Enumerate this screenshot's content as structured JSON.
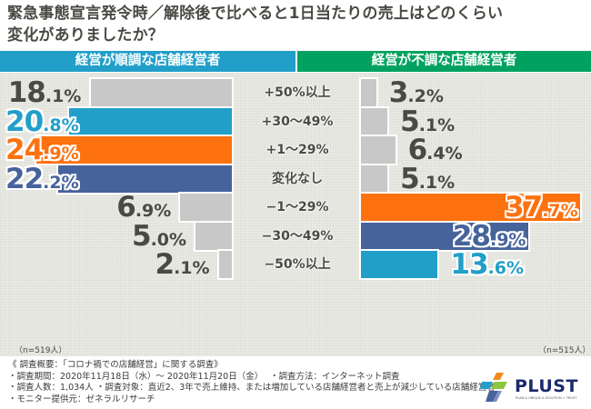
{
  "title_line1": "緊急事態宣言発令時／解除後で比べると1日当たりの売上はどのくらい",
  "title_line2": "変化がありましたか？",
  "headers": {
    "left": "経営が順調な店舗経営者",
    "right": "経営が不調な店舗経営者"
  },
  "colors": {
    "left_header": "#219fc9",
    "right_header": "#00a260",
    "grey": "#c8c8c8",
    "blue": "#219fc9",
    "orange": "#fd720f",
    "navy": "#46639b",
    "text": "#4a4a44"
  },
  "chart_data": {
    "type": "bar",
    "orientation": "horizontal-butterfly",
    "title": "緊急事態宣言発令時／解除後で比べると1日当たりの売上はどのくらい変化がありましたか？",
    "categories": [
      "+50%以上",
      "+30〜49%",
      "+1〜29%",
      "変化なし",
      "−1〜29%",
      "−30〜49%",
      "−50%以上"
    ],
    "series": [
      {
        "name": "経営が順調な店舗経営者",
        "values": [
          18.1,
          20.8,
          24.9,
          22.2,
          6.9,
          5.0,
          2.1
        ],
        "labels_int": [
          "18",
          "20",
          "24",
          "22",
          "6",
          "5",
          "2"
        ],
        "labels_dec": [
          ".1%",
          ".8%",
          ".9%",
          ".2%",
          ".9%",
          ".0%",
          ".1%"
        ],
        "highlight": [
          "grey",
          "blue",
          "orange",
          "navy",
          "grey",
          "grey",
          "grey"
        ],
        "n": "（n=519人）"
      },
      {
        "name": "経営が不調な店舗経営者",
        "values": [
          3.2,
          5.1,
          6.4,
          5.1,
          37.7,
          28.9,
          13.6
        ],
        "labels_int": [
          "3",
          "5",
          "6",
          "5",
          "37",
          "28",
          "13"
        ],
        "labels_dec": [
          ".2%",
          ".1%",
          ".4%",
          ".1%",
          ".7%",
          ".9%",
          ".6%"
        ],
        "highlight": [
          "grey",
          "grey",
          "grey",
          "grey",
          "orange",
          "navy",
          "blue"
        ],
        "n": "（n=515人）"
      }
    ],
    "unit": "%"
  },
  "notes": [
    "《 調査概要：「コロナ禍での店舗経営」に関する調査》",
    "・調査期間：2020年11月18日（水）〜 2020年11月20日（金）　 ・調査方法：インターネット調査",
    "・調査人数：1,034人 ・調査対象：直近2、3年で売上維持、または増加している店舗経営者と売上が減少している店舗経営者",
    "・モニター提供元：ゼネラルリサーチ"
  ],
  "logo": {
    "name": "PLUST",
    "tagline": "PLAN & UNIQUE & SOLUTION + TRUST"
  }
}
